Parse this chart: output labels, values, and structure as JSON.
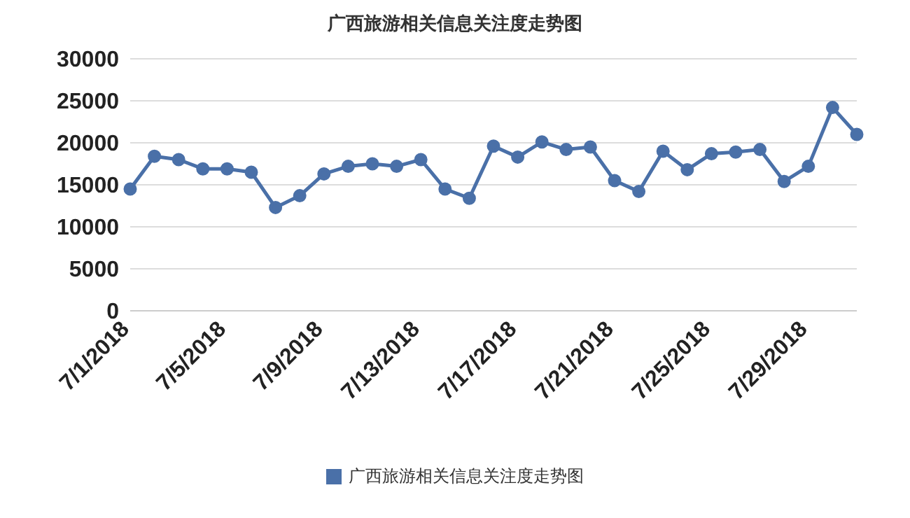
{
  "chart_data": {
    "type": "line",
    "title": "广西旅游相关信息关注度走势图",
    "categories": [
      "7/1/2018",
      null,
      null,
      null,
      "7/5/2018",
      null,
      null,
      null,
      "7/9/2018",
      null,
      null,
      null,
      "7/13/2018",
      null,
      null,
      null,
      "7/17/2018",
      null,
      null,
      null,
      "7/21/2018",
      null,
      null,
      null,
      "7/25/2018",
      null,
      null,
      null,
      "7/29/2018",
      null,
      null
    ],
    "series": [
      {
        "name": "广西旅游相关信息关注度走势图",
        "color": "#4a70a8",
        "values": [
          14500,
          18400,
          18000,
          16900,
          16900,
          16500,
          12300,
          13700,
          16300,
          17200,
          17500,
          17200,
          18000,
          14500,
          13400,
          19600,
          18300,
          20100,
          19200,
          19500,
          15500,
          14200,
          19000,
          16800,
          18700,
          18900,
          19200,
          15400,
          17200,
          24200,
          21000
        ]
      }
    ],
    "ylim": [
      0,
      30000
    ],
    "yticks": [
      0,
      5000,
      10000,
      15000,
      20000,
      25000,
      30000
    ],
    "grid": "y",
    "legend": "bottom",
    "marker": "circle",
    "line_style": "solid"
  }
}
